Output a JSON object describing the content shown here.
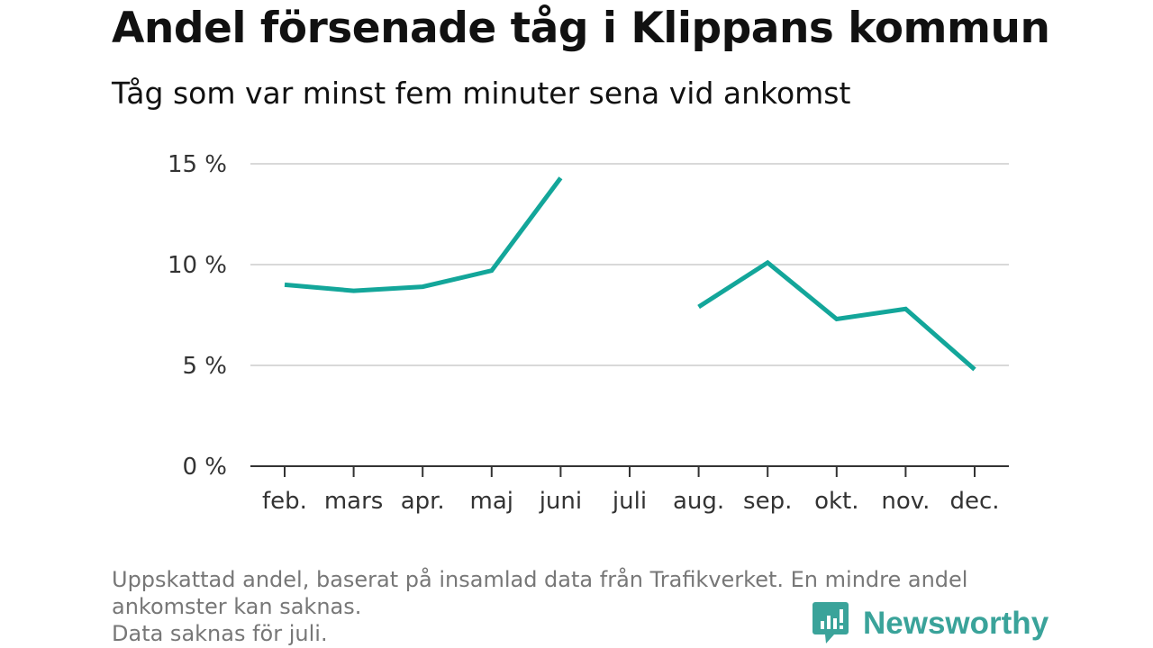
{
  "header": {
    "title": "Andel försenade tåg i Klippans kommun",
    "subtitle": "Tåg som var minst fem minuter sena vid ankomst"
  },
  "footnote": {
    "line1": "Uppskattad andel, baserat på insamlad data från Trafikverket. En mindre andel",
    "line2": "ankomster kan saknas.",
    "line3": "Data saknas för juli."
  },
  "brand": {
    "name": "Newsworthy",
    "icon": "newsworthy-logo-icon",
    "color": "#3aa39a"
  },
  "colors": {
    "series": "#13a69a",
    "grid": "#d9d9d9",
    "axis": "#333333",
    "text": "#111111",
    "muted": "#777777"
  },
  "chart_data": {
    "type": "line",
    "title": "Andel försenade tåg i Klippans kommun",
    "subtitle": "Tåg som var minst fem minuter sena vid ankomst",
    "categories": [
      "feb.",
      "mars",
      "apr.",
      "maj",
      "juni",
      "juli",
      "aug.",
      "sep.",
      "okt.",
      "nov.",
      "dec."
    ],
    "series": [
      {
        "values": [
          9.0,
          8.7,
          8.9,
          9.7,
          14.3,
          null,
          7.9,
          10.1,
          7.3,
          7.8,
          4.8
        ]
      }
    ],
    "ylim": [
      0,
      15
    ],
    "yticks": [
      0,
      5,
      10,
      15
    ],
    "ytick_labels": [
      "0 %",
      "5 %",
      "10 %",
      "15 %"
    ],
    "xlabel": "",
    "ylabel": "",
    "grid": true,
    "legend": "none"
  }
}
